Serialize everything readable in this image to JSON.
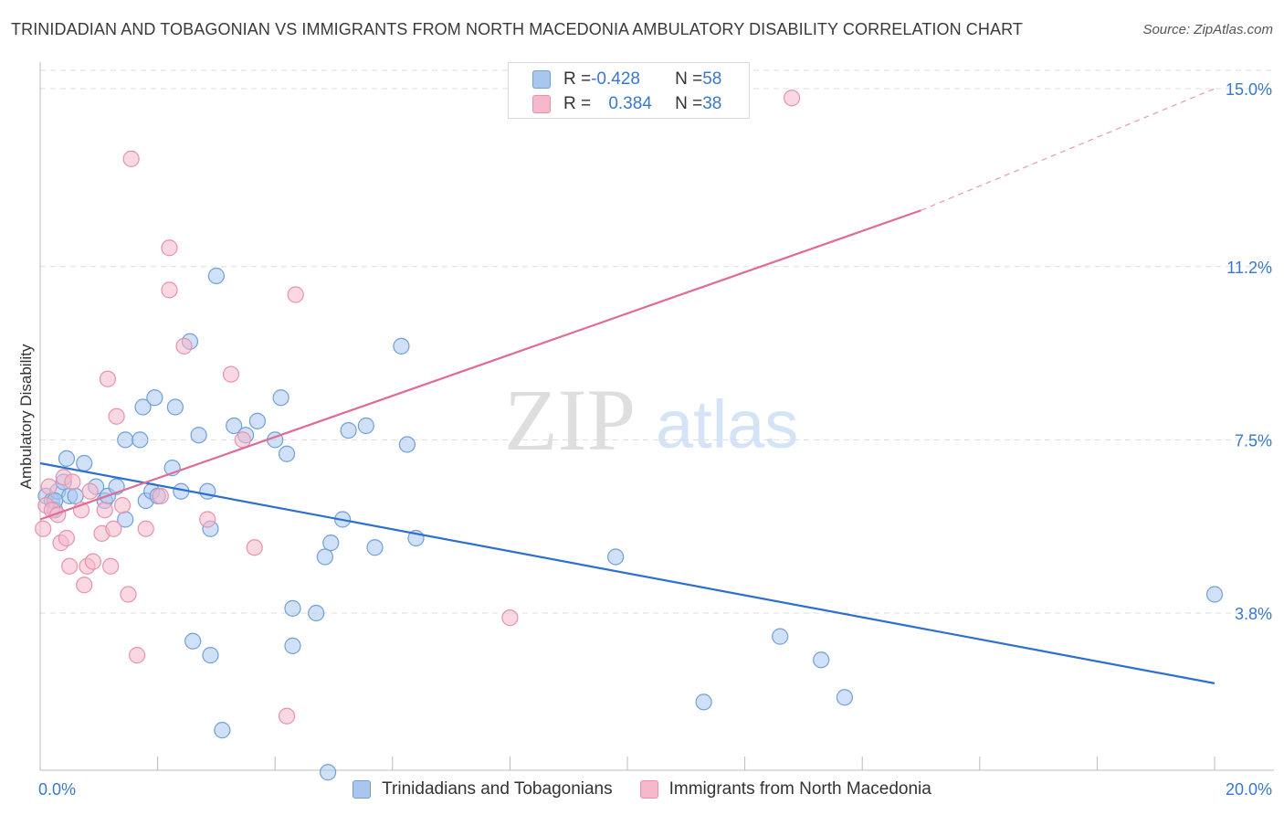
{
  "title": "TRINIDADIAN AND TOBAGONIAN VS IMMIGRANTS FROM NORTH MACEDONIA AMBULATORY DISABILITY CORRELATION CHART",
  "source": "Source: ZipAtlas.com",
  "watermark": {
    "zip": "ZIP",
    "atlas": "atlas"
  },
  "legend": {
    "rows": [
      {
        "r_label": "R = ",
        "r_value": "-0.428",
        "n_label": "N = ",
        "n_value": "58",
        "color": "#a9c6ee"
      },
      {
        "r_label": "R = ",
        "r_value": "0.384",
        "n_label": "N = ",
        "n_value": "38",
        "color": "#f5b8cb"
      }
    ]
  },
  "bottom_legend": [
    {
      "label": "Trinidadians and Tobagonians",
      "color": "#a9c6ee"
    },
    {
      "label": "Immigrants from North Macedonia",
      "color": "#f5b8cb"
    }
  ],
  "colors": {
    "blue_fill": "#a9c6ee",
    "blue_stroke": "#6f9fd8",
    "blue_line": "#2b6fd0",
    "pink_fill": "#f5b8cb",
    "pink_stroke": "#e891ad",
    "pink_line": "#e06b96",
    "axis_text": "#3a78c9",
    "grid": "#dddddd"
  },
  "chart_data": {
    "type": "scatter",
    "title": "TRINIDADIAN AND TOBAGONIAN VS IMMIGRANTS FROM NORTH MACEDONIA AMBULATORY DISABILITY CORRELATION CHART",
    "xlabel": "",
    "ylabel": "Ambulatory Disability",
    "xlim": [
      0,
      20
    ],
    "ylim": [
      0,
      15.6
    ],
    "x_tick_labels": [
      "0.0%",
      "20.0%"
    ],
    "y_ticks": [
      3.8,
      7.5,
      11.2,
      15.0
    ],
    "y_tick_labels": [
      "3.8%",
      "7.5%",
      "11.2%",
      "15.0%"
    ],
    "grid": "horizontal dashed",
    "series": [
      {
        "name": "Trinidadians and Tobagonians",
        "color": "#a9c6ee",
        "points": [
          [
            0.1,
            6.3
          ],
          [
            0.2,
            6.2
          ],
          [
            0.25,
            6.0
          ],
          [
            0.3,
            6.4
          ],
          [
            0.4,
            6.6
          ],
          [
            0.45,
            7.1
          ],
          [
            0.5,
            6.3
          ],
          [
            0.6,
            6.3
          ],
          [
            0.75,
            7.0
          ],
          [
            0.95,
            6.5
          ],
          [
            1.1,
            6.2
          ],
          [
            1.15,
            6.3
          ],
          [
            1.3,
            6.5
          ],
          [
            1.45,
            5.8
          ],
          [
            1.45,
            7.5
          ],
          [
            1.7,
            7.5
          ],
          [
            1.75,
            8.2
          ],
          [
            1.8,
            6.2
          ],
          [
            1.9,
            6.4
          ],
          [
            1.95,
            8.4
          ],
          [
            2.0,
            6.3
          ],
          [
            2.25,
            6.9
          ],
          [
            2.3,
            8.2
          ],
          [
            2.4,
            6.4
          ],
          [
            2.55,
            9.6
          ],
          [
            2.7,
            7.6
          ],
          [
            2.85,
            6.4
          ],
          [
            2.9,
            5.6
          ],
          [
            3.3,
            7.8
          ],
          [
            3.5,
            7.6
          ],
          [
            3.7,
            7.9
          ],
          [
            4.0,
            7.5
          ],
          [
            4.1,
            8.4
          ],
          [
            4.2,
            7.2
          ],
          [
            4.3,
            3.9
          ],
          [
            4.3,
            3.1
          ],
          [
            4.7,
            3.8
          ],
          [
            4.85,
            5.0
          ],
          [
            4.95,
            5.3
          ],
          [
            5.15,
            5.8
          ],
          [
            5.25,
            7.7
          ],
          [
            5.55,
            7.8
          ],
          [
            5.7,
            5.2
          ],
          [
            6.15,
            9.5
          ],
          [
            6.25,
            7.4
          ],
          [
            6.4,
            5.4
          ],
          [
            9.8,
            5.0
          ],
          [
            12.6,
            3.3
          ],
          [
            13.3,
            2.8
          ],
          [
            13.7,
            2.0
          ],
          [
            11.3,
            1.9
          ],
          [
            3.0,
            11.0
          ],
          [
            2.6,
            3.2
          ],
          [
            2.9,
            2.9
          ],
          [
            3.1,
            1.3
          ],
          [
            4.9,
            0.4
          ],
          [
            20.0,
            4.2
          ],
          [
            0.25,
            6.2
          ]
        ]
      },
      {
        "name": "Immigrants from North Macedonia",
        "color": "#f5b8cb",
        "points": [
          [
            0.05,
            5.6
          ],
          [
            0.1,
            6.1
          ],
          [
            0.15,
            6.5
          ],
          [
            0.2,
            6.0
          ],
          [
            0.3,
            5.9
          ],
          [
            0.35,
            5.3
          ],
          [
            0.4,
            6.7
          ],
          [
            0.45,
            5.4
          ],
          [
            0.55,
            6.6
          ],
          [
            0.5,
            4.8
          ],
          [
            0.7,
            6.0
          ],
          [
            0.75,
            4.4
          ],
          [
            0.8,
            4.8
          ],
          [
            0.85,
            6.4
          ],
          [
            0.9,
            4.9
          ],
          [
            1.05,
            5.5
          ],
          [
            1.1,
            6.0
          ],
          [
            1.15,
            8.8
          ],
          [
            1.2,
            4.8
          ],
          [
            1.25,
            5.6
          ],
          [
            1.3,
            8.0
          ],
          [
            1.4,
            6.1
          ],
          [
            1.5,
            4.2
          ],
          [
            1.55,
            13.5
          ],
          [
            1.65,
            2.9
          ],
          [
            1.8,
            5.6
          ],
          [
            2.05,
            6.3
          ],
          [
            2.2,
            10.7
          ],
          [
            2.2,
            11.6
          ],
          [
            2.45,
            9.5
          ],
          [
            2.85,
            5.8
          ],
          [
            3.25,
            8.9
          ],
          [
            3.45,
            7.5
          ],
          [
            3.65,
            5.2
          ],
          [
            4.2,
            1.6
          ],
          [
            4.35,
            10.6
          ],
          [
            8.0,
            3.7
          ],
          [
            12.8,
            14.8
          ]
        ]
      }
    ],
    "trend_lines": [
      {
        "series": "Trinidadians and Tobagonians",
        "x": [
          0,
          20
        ],
        "y": [
          7.0,
          2.3
        ]
      },
      {
        "series": "Immigrants from North Macedonia",
        "x": [
          0,
          15
        ],
        "y": [
          5.8,
          12.4
        ],
        "dashed_to": [
          20,
          15.0
        ]
      }
    ]
  }
}
